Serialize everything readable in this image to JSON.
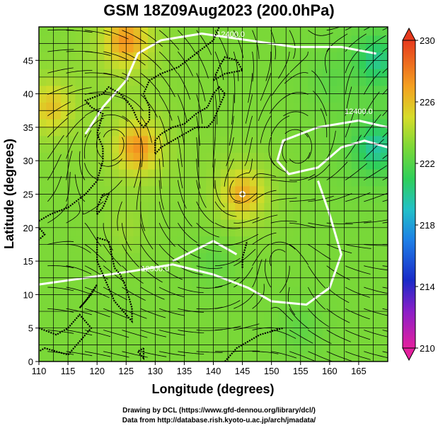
{
  "chart_data": {
    "type": "heatmap",
    "title": "GSM 18Z09Aug2023 (200.0hPa)",
    "xlabel": "Longitude (degrees)",
    "ylabel": "Latitude  (degrees)",
    "xlim": [
      110,
      170
    ],
    "ylim": [
      0,
      50
    ],
    "x_ticks": [
      "110",
      "115",
      "120",
      "125",
      "130",
      "135",
      "140",
      "145",
      "150",
      "155",
      "160",
      "165"
    ],
    "y_ticks": [
      "0",
      "5",
      "10",
      "15",
      "20",
      "25",
      "30",
      "35",
      "40",
      "45"
    ],
    "grid": true,
    "colorbar": {
      "min": 210,
      "max": 230,
      "tick_labels": [
        "210",
        "214",
        "218",
        "222",
        "226",
        "230"
      ],
      "placement": "right"
    },
    "contour_labels": [
      {
        "text": "12400.0",
        "lon": 143,
        "lat": 48.5
      },
      {
        "text": "12500.0",
        "lon": 130,
        "lat": 13.5
      },
      {
        "text": "12400.0",
        "lon": 165,
        "lat": 37
      }
    ],
    "color_field_centers": [
      {
        "lon": 127,
        "lat": 32,
        "value": 229
      },
      {
        "lon": 125,
        "lat": 48,
        "value": 229
      },
      {
        "lon": 112,
        "lat": 38,
        "value": 227
      },
      {
        "lon": 145,
        "lat": 25,
        "value": 228
      },
      {
        "lon": 168,
        "lat": 32,
        "value": 218.5
      },
      {
        "lon": 168,
        "lat": 45,
        "value": 219
      },
      {
        "lon": 160,
        "lat": 42,
        "value": 222
      },
      {
        "lon": 140,
        "lat": 15,
        "value": 222
      },
      {
        "lon": 125,
        "lat": 20,
        "value": 224
      },
      {
        "lon": 155,
        "lat": 5,
        "value": 222
      },
      {
        "lon": 115,
        "lat": 5,
        "value": 223
      }
    ],
    "background_value": 223,
    "vortex_centers": [
      {
        "lon": 154.5,
        "lat": 31
      },
      {
        "lon": 151,
        "lat": 16
      },
      {
        "lon": 144,
        "lat": 25
      },
      {
        "lon": 123,
        "lat": 33
      }
    ]
  },
  "credits": {
    "line1": "Drawing by DCL (https://www.gfd-dennou.org/library/dcl/)",
    "line2": "Data from http://database.rish.kyoto-u.ac.jp/arch/jmadata/"
  }
}
